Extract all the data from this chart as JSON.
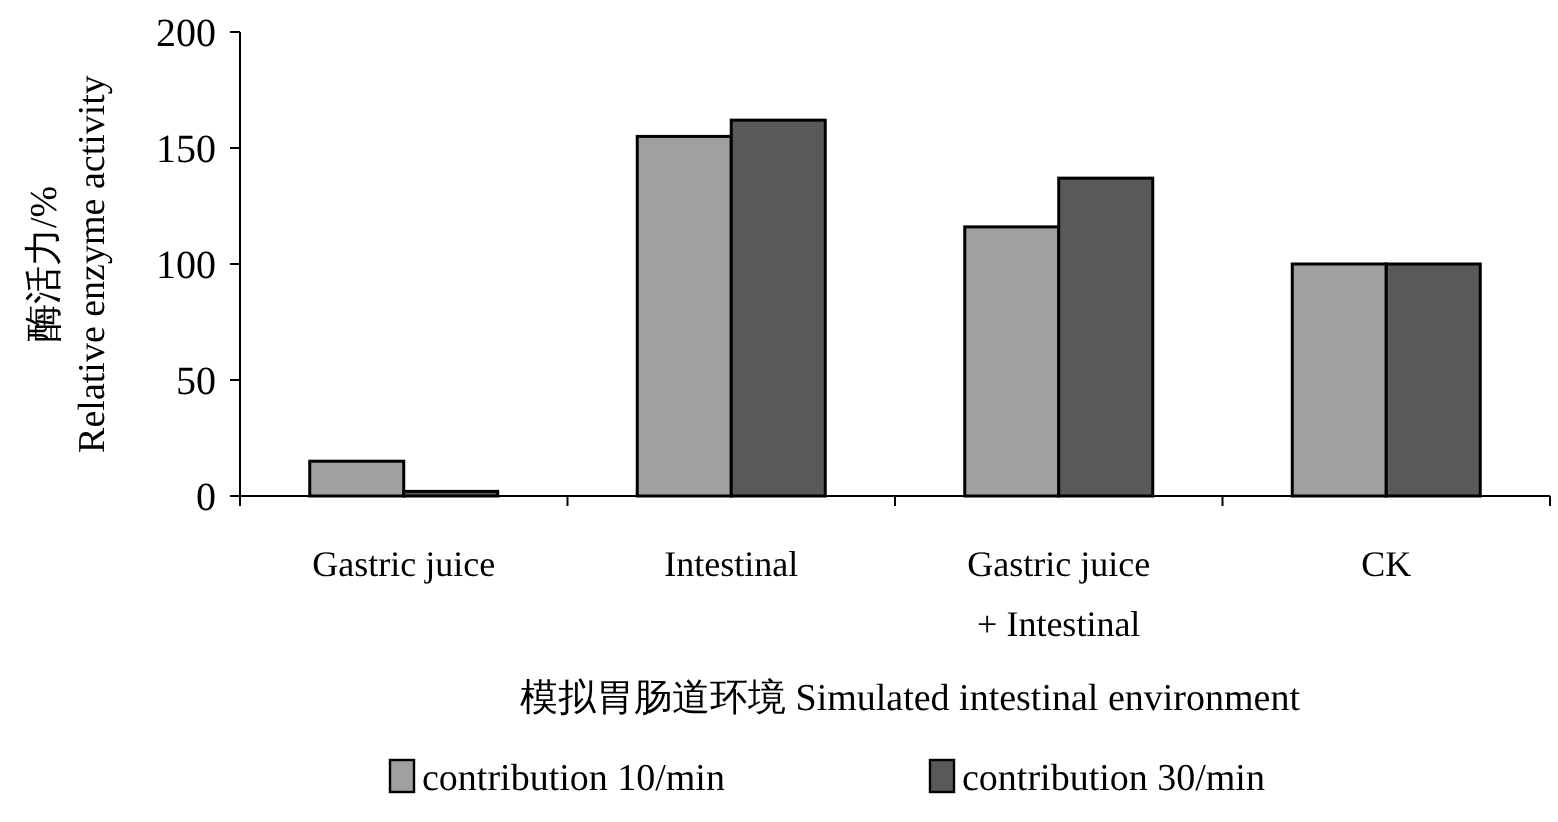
{
  "chart_data": {
    "type": "bar",
    "ylabel": "酶活力/%\nRelative enzyme activity",
    "xlabel": "模拟胃肠道环境  Simulated intestinal environment",
    "categories": [
      "Gastric juice",
      "Intestinal",
      "Gastric juice\n+ Intestinal",
      "CK"
    ],
    "series": [
      {
        "name": "contribution 10/min",
        "color": "#a0a0a0",
        "values": [
          15,
          155,
          116,
          100
        ]
      },
      {
        "name": "contribution 30/min",
        "color": "#595959",
        "values": [
          2,
          162,
          137,
          100
        ]
      }
    ],
    "ylim": [
      0,
      200
    ],
    "yticks": [
      0,
      50,
      100,
      150,
      200
    ],
    "legend": "bottom"
  }
}
